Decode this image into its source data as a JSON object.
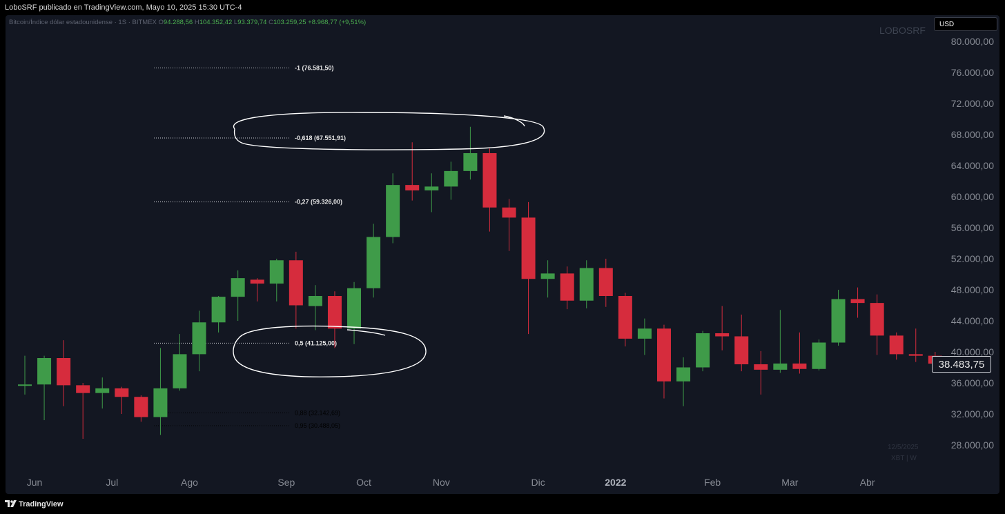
{
  "header": {
    "publisher_line": "LoboSRF publicado en TradingView.com, Mayo 10, 2025 15:30 UTC-4"
  },
  "legend": {
    "symbol": "Bitcoin/Índice dólar estadounidense · 1S · BITMEX",
    "o_label": "O",
    "o_value": "94.288,56",
    "h_label": "H",
    "h_value": "104.352,42",
    "l_label": "L",
    "l_value": "93.379,74",
    "c_label": "C",
    "c_value": "103.259,25",
    "change": "+8.968,77 (+9,51%)"
  },
  "watermark": "LOBOSRF",
  "currency_button": "USD",
  "last_price": "38.483,75",
  "date_stamp": "12/5/2025",
  "symbol_stamp": "XBT | W",
  "footer": {
    "brand": "TradingView"
  },
  "colors": {
    "background": "#131722",
    "up": "#3f9b49",
    "down": "#d62c3d",
    "axis_text": "#878b94",
    "legend_up": "#4caf50"
  },
  "chart_data": {
    "type": "candlestick",
    "title": "",
    "ylim": [
      26000,
      82000
    ],
    "y_ticks": [
      "80.000,00",
      "76.000,00",
      "72.000,00",
      "68.000,00",
      "64.000,00",
      "60.000,00",
      "56.000,00",
      "52.000,00",
      "48.000,00",
      "44.000,00",
      "40.000,00",
      "36.000,00",
      "32.000,00",
      "28.000,00"
    ],
    "y_tick_values": [
      80000,
      76000,
      72000,
      68000,
      64000,
      60000,
      56000,
      52000,
      48000,
      44000,
      40000,
      36000,
      32000,
      28000
    ],
    "x_labels": [
      {
        "label": "Jun",
        "index": 0.5
      },
      {
        "label": "Jul",
        "index": 4.5
      },
      {
        "label": "Ago",
        "index": 8.5
      },
      {
        "label": "Sep",
        "index": 13.5
      },
      {
        "label": "Oct",
        "index": 17.5
      },
      {
        "label": "Nov",
        "index": 21.5
      },
      {
        "label": "Dic",
        "index": 26.5
      },
      {
        "label": "2022",
        "index": 30.5
      },
      {
        "label": "Feb",
        "index": 35.5
      },
      {
        "label": "Mar",
        "index": 39.5
      },
      {
        "label": "Abr",
        "index": 43.5
      }
    ],
    "candles": [
      {
        "o": 35800,
        "h": 39500,
        "l": 34500,
        "c": 35800
      },
      {
        "o": 35800,
        "h": 39500,
        "l": 31200,
        "c": 39200
      },
      {
        "o": 39200,
        "h": 41500,
        "l": 33000,
        "c": 35700
      },
      {
        "o": 35700,
        "h": 36000,
        "l": 28800,
        "c": 34700
      },
      {
        "o": 34700,
        "h": 36700,
        "l": 32700,
        "c": 35300
      },
      {
        "o": 35300,
        "h": 35500,
        "l": 32000,
        "c": 34200
      },
      {
        "o": 34200,
        "h": 34400,
        "l": 31000,
        "c": 31600
      },
      {
        "o": 31600,
        "h": 40500,
        "l": 29300,
        "c": 35300
      },
      {
        "o": 35300,
        "h": 42300,
        "l": 35000,
        "c": 39700
      },
      {
        "o": 39700,
        "h": 45300,
        "l": 37500,
        "c": 43800
      },
      {
        "o": 43800,
        "h": 47200,
        "l": 42500,
        "c": 47100
      },
      {
        "o": 47100,
        "h": 50500,
        "l": 44000,
        "c": 49500
      },
      {
        "o": 49300,
        "h": 49500,
        "l": 46500,
        "c": 48800
      },
      {
        "o": 48800,
        "h": 52000,
        "l": 46500,
        "c": 51800
      },
      {
        "o": 51800,
        "h": 52900,
        "l": 43000,
        "c": 46000
      },
      {
        "o": 45900,
        "h": 48600,
        "l": 42800,
        "c": 47200
      },
      {
        "o": 47200,
        "h": 47800,
        "l": 40500,
        "c": 43000
      },
      {
        "o": 43000,
        "h": 49000,
        "l": 41000,
        "c": 48200
      },
      {
        "o": 48200,
        "h": 56500,
        "l": 47000,
        "c": 54800
      },
      {
        "o": 54800,
        "h": 63000,
        "l": 54000,
        "c": 61500
      },
      {
        "o": 61500,
        "h": 67000,
        "l": 59500,
        "c": 60800
      },
      {
        "o": 60800,
        "h": 63000,
        "l": 58000,
        "c": 61300
      },
      {
        "o": 61300,
        "h": 64500,
        "l": 59600,
        "c": 63300
      },
      {
        "o": 63300,
        "h": 69000,
        "l": 62200,
        "c": 65600
      },
      {
        "o": 65600,
        "h": 66200,
        "l": 55500,
        "c": 58600
      },
      {
        "o": 58600,
        "h": 59700,
        "l": 53000,
        "c": 57300
      },
      {
        "o": 57300,
        "h": 59300,
        "l": 42300,
        "c": 49400
      },
      {
        "o": 49400,
        "h": 51800,
        "l": 47000,
        "c": 50100
      },
      {
        "o": 50100,
        "h": 51000,
        "l": 45500,
        "c": 46600
      },
      {
        "o": 46600,
        "h": 51800,
        "l": 45600,
        "c": 50800
      },
      {
        "o": 50800,
        "h": 52000,
        "l": 45800,
        "c": 47200
      },
      {
        "o": 47200,
        "h": 47600,
        "l": 40700,
        "c": 41700
      },
      {
        "o": 41700,
        "h": 44300,
        "l": 39600,
        "c": 43000
      },
      {
        "o": 43000,
        "h": 43500,
        "l": 34000,
        "c": 36200
      },
      {
        "o": 36200,
        "h": 39300,
        "l": 33000,
        "c": 38000
      },
      {
        "o": 38000,
        "h": 42700,
        "l": 37500,
        "c": 42400
      },
      {
        "o": 42400,
        "h": 45900,
        "l": 40200,
        "c": 42000
      },
      {
        "o": 42000,
        "h": 44800,
        "l": 37500,
        "c": 38400
      },
      {
        "o": 38400,
        "h": 40100,
        "l": 34500,
        "c": 37700
      },
      {
        "o": 37700,
        "h": 45400,
        "l": 37300,
        "c": 38500
      },
      {
        "o": 38500,
        "h": 42500,
        "l": 37200,
        "c": 37800
      },
      {
        "o": 37800,
        "h": 41600,
        "l": 37600,
        "c": 41200
      },
      {
        "o": 41200,
        "h": 48000,
        "l": 40800,
        "c": 46800
      },
      {
        "o": 46800,
        "h": 48300,
        "l": 44400,
        "c": 46300
      },
      {
        "o": 46300,
        "h": 47400,
        "l": 39600,
        "c": 42100
      },
      {
        "o": 42100,
        "h": 42500,
        "l": 39000,
        "c": 39700
      },
      {
        "o": 39700,
        "h": 43000,
        "l": 38700,
        "c": 39500
      },
      {
        "o": 39500,
        "h": 40000,
        "l": 37800,
        "c": 38484
      }
    ],
    "fib_levels": [
      {
        "label": "-1 (76.581,50)",
        "value": 76581.5
      },
      {
        "label": "-0,618 (67.551,91)",
        "value": 67551.91
      },
      {
        "label": "-0,27 (59.326,00)",
        "value": 59326
      },
      {
        "label": "0,5 (41.125,00)",
        "value": 41125
      },
      {
        "label": "0,88 (32.142,69)",
        "value": 32142.69
      },
      {
        "label": "0,95 (30.488,05)",
        "value": 30488.05
      }
    ],
    "annotations": [
      "hand-drawn ellipse around -0,618 level",
      "hand-drawn ellipse around 0,5 level"
    ]
  }
}
